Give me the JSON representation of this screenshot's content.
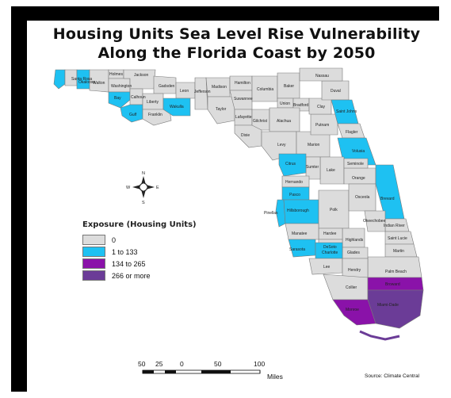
{
  "title_line1": "Housing Units Sea Level Rise Vulnerability",
  "title_line2": "Along the Florida Coast by 2050",
  "legend": {
    "title": "Exposure (Housing Units)",
    "items": [
      {
        "label": "0",
        "color": "#dcdcdc"
      },
      {
        "label": "1 to 133",
        "color": "#1ec1f2"
      },
      {
        "label": "134 to 265",
        "color": "#8a12a9"
      },
      {
        "label": "266 or more",
        "color": "#6b3c97"
      }
    ]
  },
  "scale_bar": {
    "ticks": [
      "50",
      "25",
      "0",
      "50",
      "100"
    ],
    "unit": "Miles"
  },
  "north_arrow": {
    "n": "N",
    "s": "S",
    "e": "E",
    "w": "W"
  },
  "source": "Source: Climate Central",
  "county_labels": [
    "Santa Rosa",
    "Okaloosa",
    "Walton",
    "Holmes",
    "Jackson",
    "Washington",
    "Bay",
    "Calhoun",
    "Gulf",
    "Gadsden",
    "Liberty",
    "Leon",
    "Wakulla",
    "Franklin",
    "Jefferson",
    "Madison",
    "Taylor",
    "Hamilton",
    "Suwannee",
    "Lafayette",
    "Dixie",
    "Columbia",
    "Baker",
    "Union",
    "Bradford",
    "Gilchrist",
    "Alachua",
    "Levy",
    "Marion",
    "Putnam",
    "Clay",
    "Duval",
    "Nassau",
    "Saint Johns",
    "Flagler",
    "Volusia",
    "Lake",
    "Sumter",
    "Citrus",
    "Hernando",
    "Pasco",
    "Pinellas",
    "Hillsborough",
    "Polk",
    "Orange",
    "Seminole",
    "Osceola",
    "Brevard",
    "Indian River",
    "Okeechobee",
    "Saint Lucie",
    "Martin",
    "Palm Beach",
    "Highlands",
    "Hardee",
    "DeSoto",
    "Manatee",
    "Sarasota",
    "Charlotte",
    "Glades",
    "Hendry",
    "Lee",
    "Collier",
    "Broward",
    "Miami-Dade",
    "Monroe"
  ]
}
